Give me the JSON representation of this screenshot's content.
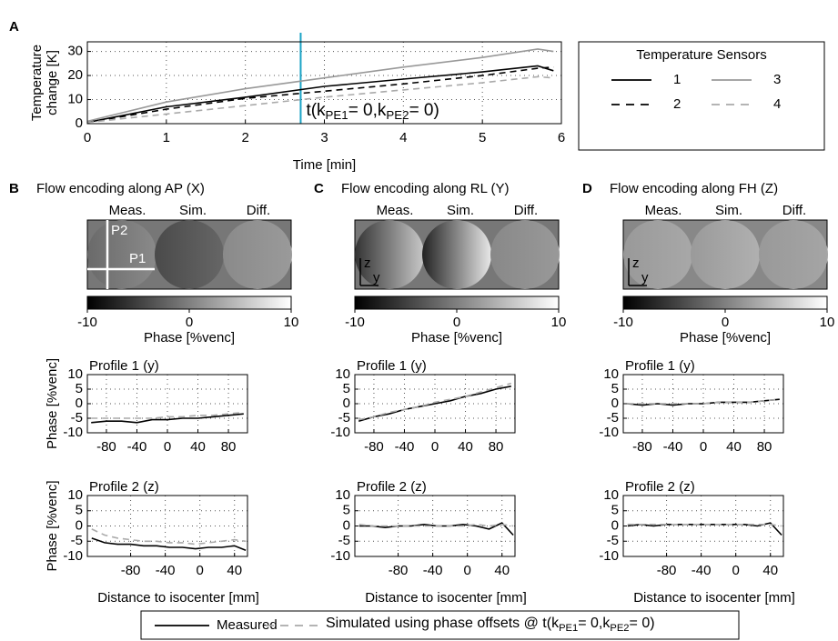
{
  "panels": [
    {
      "label": "A"
    },
    {
      "label": "B",
      "title": "Flow encoding along AP (X)",
      "image_labels": [
        "Meas.",
        "Sim.",
        "Diff."
      ],
      "markers": [
        "P2",
        "P1"
      ]
    },
    {
      "label": "C",
      "title": "Flow encoding along RL (Y)",
      "image_labels": [
        "Meas.",
        "Sim.",
        "Diff."
      ],
      "markers": [
        "z",
        "y"
      ]
    },
    {
      "label": "D",
      "title": "Flow encoding along FH (Z)",
      "image_labels": [
        "Meas.",
        "Sim.",
        "Diff."
      ],
      "markers": [
        "z",
        "y"
      ]
    }
  ],
  "colorbar": {
    "lim": [
      -10,
      10
    ],
    "ticks": [
      -10,
      0,
      10
    ],
    "label": "Phase [%venc]"
  },
  "legend": {
    "entries": [
      {
        "label": "Measured"
      },
      {
        "label_parts": [
          "Simulated using phase offsets @ t(k",
          "PE1",
          "= 0,k",
          "PE2",
          "= 0)"
        ]
      }
    ]
  },
  "chart_data": [
    {
      "type": "line",
      "xlabel": "Time [min]",
      "ylabel": [
        "Temperature",
        "change [K]"
      ],
      "xlim": [
        0,
        6
      ],
      "ylim": [
        0,
        34
      ],
      "xticks": [
        0,
        1,
        2,
        3,
        4,
        5,
        6
      ],
      "yticks": [
        0,
        10,
        20,
        30
      ],
      "grid": true,
      "legend_title": "Temperature Sensors",
      "x": [
        0,
        1,
        2,
        3,
        4,
        5,
        5.7,
        5.9
      ],
      "series": [
        {
          "name": "1",
          "color": "#000000",
          "dash": false,
          "values": [
            0.5,
            7,
            11,
            15.5,
            18.5,
            21.5,
            24,
            22
          ]
        },
        {
          "name": "2",
          "color": "#000000",
          "dash": true,
          "values": [
            0.5,
            6,
            10.5,
            13.5,
            16.5,
            20,
            23,
            23.5
          ]
        },
        {
          "name": "3",
          "color": "#999999",
          "dash": false,
          "values": [
            1,
            9,
            14.5,
            19,
            23.5,
            27.5,
            31,
            30
          ]
        },
        {
          "name": "4",
          "color": "#aaaaaa",
          "dash": true,
          "values": [
            0.5,
            4,
            7.5,
            11,
            14,
            17,
            19.5,
            19
          ]
        }
      ],
      "annotation": {
        "x": 2.7,
        "color": "#1ba3c6",
        "text_parts": [
          "t(k",
          "PE1",
          "= 0,k",
          "PE2",
          "= 0)"
        ]
      }
    },
    {
      "type": "line",
      "title": "Profile 1 (y)",
      "ylabel": "Phase [%venc]",
      "xlim": [
        -105,
        105
      ],
      "xticks": [
        -80,
        -40,
        0,
        40,
        80
      ],
      "ylim": [
        -10,
        10
      ],
      "yticks": [
        -10,
        -5,
        0,
        5,
        10
      ],
      "grid": true,
      "x": [
        -100,
        -80,
        -60,
        -40,
        -20,
        0,
        20,
        40,
        60,
        80,
        100
      ],
      "series": [
        {
          "color": "#000000",
          "dash": false,
          "values": [
            -6.5,
            -6,
            -6,
            -6.5,
            -5.5,
            -5.5,
            -5,
            -5,
            -4.5,
            -4,
            -3.5
          ]
        },
        {
          "color": "#aaaaaa",
          "dash": true,
          "values": [
            -5,
            -5,
            -5,
            -5,
            -5,
            -4.5,
            -4.5,
            -4,
            -4,
            -3.5,
            -3
          ]
        }
      ]
    },
    {
      "type": "line",
      "title": "Profile 2 (z)",
      "ylabel": "Phase [%venc]",
      "xlabel": "Distance to isocenter [mm]",
      "xlim": [
        -130,
        55
      ],
      "xticks": [
        -80,
        -40,
        0,
        40
      ],
      "ylim": [
        -10,
        10
      ],
      "yticks": [
        -10,
        -5,
        0,
        5,
        10
      ],
      "grid": true,
      "x": [
        -125,
        -110,
        -95,
        -80,
        -65,
        -50,
        -35,
        -20,
        -5,
        10,
        25,
        40,
        53
      ],
      "series": [
        {
          "color": "#000000",
          "dash": false,
          "values": [
            -4,
            -5.5,
            -6,
            -6,
            -6.5,
            -6.5,
            -7,
            -7,
            -7.5,
            -7,
            -7,
            -6.5,
            -8
          ]
        },
        {
          "color": "#aaaaaa",
          "dash": true,
          "values": [
            -1,
            -3,
            -4,
            -4.5,
            -5,
            -5,
            -5.5,
            -5.5,
            -6,
            -5.5,
            -5,
            -4.5,
            -5
          ]
        }
      ]
    },
    {
      "type": "line",
      "title": "Profile 1 (y)",
      "xlim": [
        -105,
        105
      ],
      "xticks": [
        -80,
        -40,
        0,
        40,
        80
      ],
      "ylim": [
        -10,
        10
      ],
      "yticks": [
        -10,
        -5,
        0,
        5,
        10
      ],
      "grid": true,
      "x": [
        -100,
        -80,
        -60,
        -40,
        -20,
        0,
        20,
        40,
        60,
        80,
        100
      ],
      "series": [
        {
          "color": "#000000",
          "dash": false,
          "values": [
            -6,
            -4.5,
            -3.5,
            -2,
            -1,
            0,
            1,
            2.5,
            3.5,
            5,
            6
          ]
        },
        {
          "color": "#aaaaaa",
          "dash": true,
          "values": [
            -5.5,
            -4.5,
            -3,
            -2,
            -1,
            0.5,
            1.5,
            2.5,
            4,
            5.5,
            7
          ]
        }
      ]
    },
    {
      "type": "line",
      "title": "Profile 2 (z)",
      "xlabel": "Distance to isocenter [mm]",
      "xlim": [
        -130,
        55
      ],
      "xticks": [
        -80,
        -40,
        0,
        40
      ],
      "ylim": [
        -10,
        10
      ],
      "yticks": [
        -10,
        -5,
        0,
        5,
        10
      ],
      "grid": true,
      "x": [
        -125,
        -110,
        -95,
        -80,
        -65,
        -50,
        -35,
        -20,
        -5,
        10,
        25,
        40,
        53
      ],
      "series": [
        {
          "color": "#000000",
          "dash": false,
          "values": [
            0,
            0,
            -0.5,
            0,
            0,
            0.5,
            0,
            0,
            0.5,
            0,
            -1,
            1,
            -3
          ]
        },
        {
          "color": "#aaaaaa",
          "dash": true,
          "values": [
            0.5,
            0,
            0,
            0,
            0,
            0,
            0,
            0,
            0,
            0.5,
            0,
            0.5,
            0
          ]
        }
      ]
    },
    {
      "type": "line",
      "title": "Profile 1 (y)",
      "xlim": [
        -105,
        105
      ],
      "xticks": [
        -80,
        -40,
        0,
        40,
        80
      ],
      "ylim": [
        -10,
        10
      ],
      "yticks": [
        -10,
        -5,
        0,
        5,
        10
      ],
      "grid": true,
      "x": [
        -100,
        -80,
        -60,
        -40,
        -20,
        0,
        20,
        40,
        60,
        80,
        100
      ],
      "series": [
        {
          "color": "#000000",
          "dash": false,
          "values": [
            0,
            -0.5,
            0,
            -0.5,
            0,
            0,
            0.5,
            0.5,
            0.5,
            1,
            1.5
          ]
        },
        {
          "color": "#aaaaaa",
          "dash": true,
          "values": [
            0,
            0,
            0,
            0,
            0,
            0,
            0.5,
            0.5,
            0.5,
            1,
            1.5
          ]
        }
      ]
    },
    {
      "type": "line",
      "title": "Profile 2 (z)",
      "xlabel": "Distance to isocenter [mm]",
      "xlim": [
        -130,
        55
      ],
      "xticks": [
        -80,
        -40,
        0,
        40
      ],
      "ylim": [
        -10,
        10
      ],
      "yticks": [
        -10,
        -5,
        0,
        5,
        10
      ],
      "grid": true,
      "x": [
        -125,
        -110,
        -95,
        -80,
        -65,
        -50,
        -35,
        -20,
        -5,
        10,
        25,
        40,
        53
      ],
      "series": [
        {
          "color": "#000000",
          "dash": false,
          "values": [
            0,
            0.5,
            0,
            0.5,
            0.5,
            0.5,
            0.5,
            0.5,
            0.5,
            0.5,
            0,
            1,
            -3
          ]
        },
        {
          "color": "#aaaaaa",
          "dash": true,
          "values": [
            0.5,
            0.5,
            0.5,
            0.5,
            0.5,
            0.5,
            0.5,
            0.5,
            0.5,
            0.5,
            0.5,
            0.5,
            0
          ]
        }
      ]
    }
  ]
}
